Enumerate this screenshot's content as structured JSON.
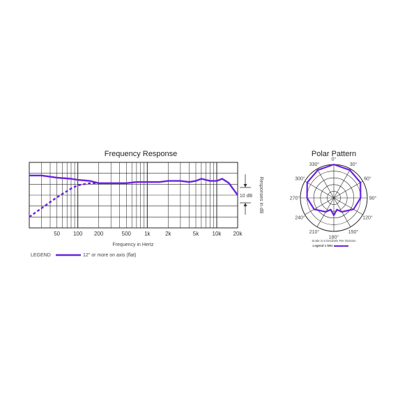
{
  "chart_data": [
    {
      "type": "line",
      "title": "Frequency Response",
      "xlabel": "Frequency in Hertz",
      "ylabel": "Responses in dB",
      "x_scale": "log",
      "xlim": [
        20,
        20000
      ],
      "ylim": [
        -20,
        10
      ],
      "grid": true,
      "x_ticks": [
        "50",
        "100",
        "200",
        "500",
        "1k",
        "2k",
        "5k",
        "10k",
        "20k"
      ],
      "x_tick_values": [
        50,
        100,
        200,
        500,
        1000,
        2000,
        5000,
        10000,
        20000
      ],
      "scale_marker": "10 dB",
      "legend_prefix": "LEGEND",
      "legend_color": "#6a22e0",
      "series": [
        {
          "name": "12\" or more on axis (flat)",
          "style": "solid",
          "x": [
            20,
            30,
            50,
            80,
            100,
            150,
            200,
            300,
            500,
            700,
            1000,
            1500,
            2000,
            3000,
            4000,
            5000,
            6000,
            8000,
            10000,
            12000,
            15000,
            18000,
            20000
          ],
          "y": [
            4,
            4,
            3,
            2.5,
            2,
            1.5,
            0.5,
            0.5,
            0.5,
            1,
            1,
            1,
            1.5,
            1.5,
            1,
            1.5,
            2.5,
            1.5,
            1.5,
            2.5,
            0.5,
            -3,
            -5
          ]
        },
        {
          "name": "",
          "style": "dashed",
          "x": [
            20,
            30,
            50,
            80,
            100,
            150,
            200
          ],
          "y": [
            -15,
            -11,
            -6,
            -2,
            -0.5,
            0.5,
            0.5
          ]
        }
      ]
    },
    {
      "type": "polar",
      "title": "Polar Pattern",
      "angle_labels": [
        "0°",
        "30°",
        "60°",
        "90°",
        "120°",
        "150°",
        "180°",
        "210°",
        "240°",
        "270°",
        "300°",
        "330°"
      ],
      "scale_note": "Scale is 5 Decibels Per Division",
      "legend": "Legend 1 kHz",
      "legend_color": "#6a22e0",
      "rings_db": [
        0,
        -5,
        -10,
        -15,
        -20,
        -25
      ],
      "pattern": {
        "angle_deg": [
          0,
          30,
          60,
          90,
          120,
          150,
          165,
          180,
          195,
          210,
          240,
          270,
          300,
          330
        ],
        "level_db": [
          0,
          -1,
          -2,
          -5,
          -8,
          -13,
          -16,
          -12,
          -16,
          -13,
          -8,
          -5,
          -2,
          -1
        ]
      }
    }
  ],
  "figure": {
    "fr_title": "Frequency Response",
    "fr_xlabel": "Frequency in Hertz",
    "fr_ylabel": "Responses in dB",
    "fr_scale": "10 dB",
    "legend_prefix": "LEGEND",
    "legend_text": "12\" or more on axis (flat)",
    "polar_title": "Polar Pattern",
    "polar_scale_note": "Scale is 5 Decibels Per Division",
    "polar_legend": "Legend 1 kHz"
  }
}
